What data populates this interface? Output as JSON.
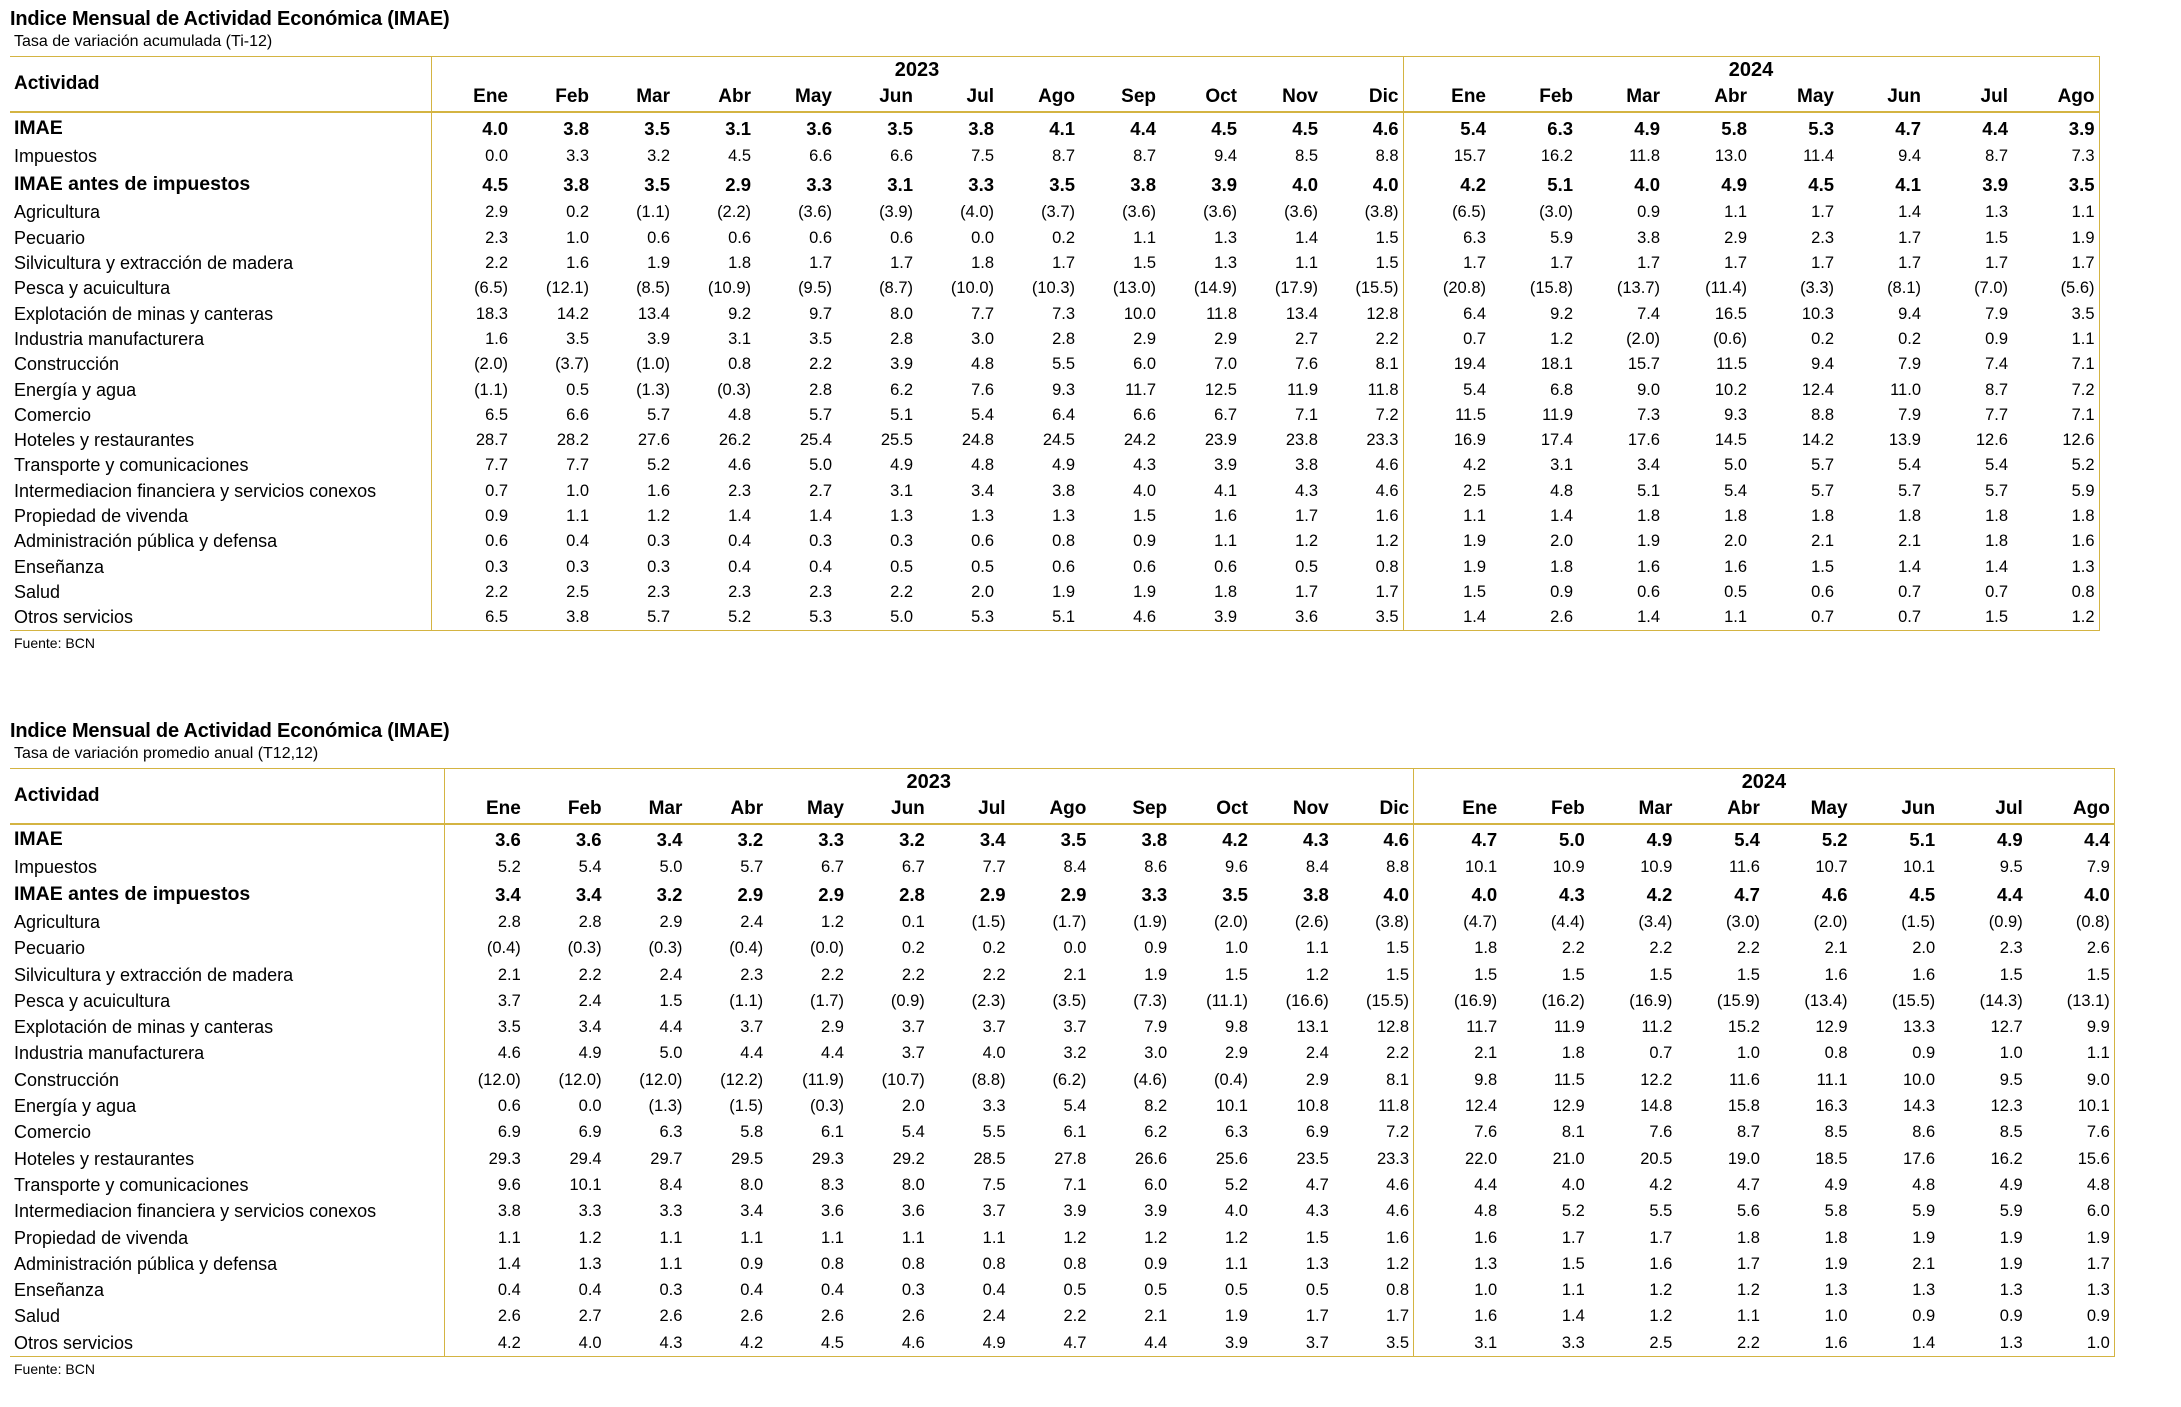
{
  "table1": {
    "title": "Indice Mensual de Actividad Económica (IMAE)",
    "subtitle": "Tasa de variación acumulada (Ti-12)",
    "label_header": "Actividad",
    "years": [
      "2023",
      "2024"
    ],
    "months_2023": [
      "Ene",
      "Feb",
      "Mar",
      "Abr",
      "May",
      "Jun",
      "Jul",
      "Ago",
      "Sep",
      "Oct",
      "Nov",
      "Dic"
    ],
    "months_2024": [
      "Ene",
      "Feb",
      "Mar",
      "Abr",
      "May",
      "Jun",
      "Jul",
      "Ago"
    ],
    "rows": [
      {
        "label": "IMAE",
        "bold": true,
        "values": [
          "4.0",
          "3.8",
          "3.5",
          "3.1",
          "3.6",
          "3.5",
          "3.8",
          "4.1",
          "4.4",
          "4.5",
          "4.5",
          "4.6",
          "5.4",
          "6.3",
          "4.9",
          "5.8",
          "5.3",
          "4.7",
          "4.4",
          "3.9"
        ]
      },
      {
        "label": "Impuestos",
        "bold": false,
        "values": [
          "0.0",
          "3.3",
          "3.2",
          "4.5",
          "6.6",
          "6.6",
          "7.5",
          "8.7",
          "8.7",
          "9.4",
          "8.5",
          "8.8",
          "15.7",
          "16.2",
          "11.8",
          "13.0",
          "11.4",
          "9.4",
          "8.7",
          "7.3"
        ]
      },
      {
        "label": "IMAE antes de impuestos",
        "bold": true,
        "values": [
          "4.5",
          "3.8",
          "3.5",
          "2.9",
          "3.3",
          "3.1",
          "3.3",
          "3.5",
          "3.8",
          "3.9",
          "4.0",
          "4.0",
          "4.2",
          "5.1",
          "4.0",
          "4.9",
          "4.5",
          "4.1",
          "3.9",
          "3.5"
        ]
      },
      {
        "label": "Agricultura",
        "bold": false,
        "values": [
          "2.9",
          "0.2",
          "(1.1)",
          "(2.2)",
          "(3.6)",
          "(3.9)",
          "(4.0)",
          "(3.7)",
          "(3.6)",
          "(3.6)",
          "(3.6)",
          "(3.8)",
          "(6.5)",
          "(3.0)",
          "0.9",
          "1.1",
          "1.7",
          "1.4",
          "1.3",
          "1.1"
        ]
      },
      {
        "label": "Pecuario",
        "bold": false,
        "values": [
          "2.3",
          "1.0",
          "0.6",
          "0.6",
          "0.6",
          "0.6",
          "0.0",
          "0.2",
          "1.1",
          "1.3",
          "1.4",
          "1.5",
          "6.3",
          "5.9",
          "3.8",
          "2.9",
          "2.3",
          "1.7",
          "1.5",
          "1.9"
        ]
      },
      {
        "label": "Silvicultura y extracción de madera",
        "bold": false,
        "values": [
          "2.2",
          "1.6",
          "1.9",
          "1.8",
          "1.7",
          "1.7",
          "1.8",
          "1.7",
          "1.5",
          "1.3",
          "1.1",
          "1.5",
          "1.7",
          "1.7",
          "1.7",
          "1.7",
          "1.7",
          "1.7",
          "1.7",
          "1.7"
        ]
      },
      {
        "label": "Pesca y acuicultura",
        "bold": false,
        "values": [
          "(6.5)",
          "(12.1)",
          "(8.5)",
          "(10.9)",
          "(9.5)",
          "(8.7)",
          "(10.0)",
          "(10.3)",
          "(13.0)",
          "(14.9)",
          "(17.9)",
          "(15.5)",
          "(20.8)",
          "(15.8)",
          "(13.7)",
          "(11.4)",
          "(3.3)",
          "(8.1)",
          "(7.0)",
          "(5.6)"
        ]
      },
      {
        "label": "Explotación de minas y canteras",
        "bold": false,
        "values": [
          "18.3",
          "14.2",
          "13.4",
          "9.2",
          "9.7",
          "8.0",
          "7.7",
          "7.3",
          "10.0",
          "11.8",
          "13.4",
          "12.8",
          "6.4",
          "9.2",
          "7.4",
          "16.5",
          "10.3",
          "9.4",
          "7.9",
          "3.5"
        ]
      },
      {
        "label": "Industria manufacturera",
        "bold": false,
        "values": [
          "1.6",
          "3.5",
          "3.9",
          "3.1",
          "3.5",
          "2.8",
          "3.0",
          "2.8",
          "2.9",
          "2.9",
          "2.7",
          "2.2",
          "0.7",
          "1.2",
          "(2.0)",
          "(0.6)",
          "0.2",
          "0.2",
          "0.9",
          "1.1"
        ]
      },
      {
        "label": "Construcción",
        "bold": false,
        "values": [
          "(2.0)",
          "(3.7)",
          "(1.0)",
          "0.8",
          "2.2",
          "3.9",
          "4.8",
          "5.5",
          "6.0",
          "7.0",
          "7.6",
          "8.1",
          "19.4",
          "18.1",
          "15.7",
          "11.5",
          "9.4",
          "7.9",
          "7.4",
          "7.1"
        ]
      },
      {
        "label": "Energía y agua",
        "bold": false,
        "values": [
          "(1.1)",
          "0.5",
          "(1.3)",
          "(0.3)",
          "2.8",
          "6.2",
          "7.6",
          "9.3",
          "11.7",
          "12.5",
          "11.9",
          "11.8",
          "5.4",
          "6.8",
          "9.0",
          "10.2",
          "12.4",
          "11.0",
          "8.7",
          "7.2"
        ]
      },
      {
        "label": "Comercio",
        "bold": false,
        "values": [
          "6.5",
          "6.6",
          "5.7",
          "4.8",
          "5.7",
          "5.1",
          "5.4",
          "6.4",
          "6.6",
          "6.7",
          "7.1",
          "7.2",
          "11.5",
          "11.9",
          "7.3",
          "9.3",
          "8.8",
          "7.9",
          "7.7",
          "7.1"
        ]
      },
      {
        "label": "Hoteles y restaurantes",
        "bold": false,
        "values": [
          "28.7",
          "28.2",
          "27.6",
          "26.2",
          "25.4",
          "25.5",
          "24.8",
          "24.5",
          "24.2",
          "23.9",
          "23.8",
          "23.3",
          "16.9",
          "17.4",
          "17.6",
          "14.5",
          "14.2",
          "13.9",
          "12.6",
          "12.6"
        ]
      },
      {
        "label": "Transporte y comunicaciones",
        "bold": false,
        "values": [
          "7.7",
          "7.7",
          "5.2",
          "4.6",
          "5.0",
          "4.9",
          "4.8",
          "4.9",
          "4.3",
          "3.9",
          "3.8",
          "4.6",
          "4.2",
          "3.1",
          "3.4",
          "5.0",
          "5.7",
          "5.4",
          "5.4",
          "5.2"
        ]
      },
      {
        "label": "Intermediacion financiera y servicios conexos",
        "bold": false,
        "values": [
          "0.7",
          "1.0",
          "1.6",
          "2.3",
          "2.7",
          "3.1",
          "3.4",
          "3.8",
          "4.0",
          "4.1",
          "4.3",
          "4.6",
          "2.5",
          "4.8",
          "5.1",
          "5.4",
          "5.7",
          "5.7",
          "5.7",
          "5.9"
        ]
      },
      {
        "label": "Propiedad de vivenda",
        "bold": false,
        "values": [
          "0.9",
          "1.1",
          "1.2",
          "1.4",
          "1.4",
          "1.3",
          "1.3",
          "1.3",
          "1.5",
          "1.6",
          "1.7",
          "1.6",
          "1.1",
          "1.4",
          "1.8",
          "1.8",
          "1.8",
          "1.8",
          "1.8",
          "1.8"
        ]
      },
      {
        "label": "Administración pública y defensa",
        "bold": false,
        "values": [
          "0.6",
          "0.4",
          "0.3",
          "0.4",
          "0.3",
          "0.3",
          "0.6",
          "0.8",
          "0.9",
          "1.1",
          "1.2",
          "1.2",
          "1.9",
          "2.0",
          "1.9",
          "2.0",
          "2.1",
          "2.1",
          "1.8",
          "1.6"
        ]
      },
      {
        "label": "Enseñanza",
        "bold": false,
        "values": [
          "0.3",
          "0.3",
          "0.3",
          "0.4",
          "0.4",
          "0.5",
          "0.5",
          "0.6",
          "0.6",
          "0.6",
          "0.5",
          "0.8",
          "1.9",
          "1.8",
          "1.6",
          "1.6",
          "1.5",
          "1.4",
          "1.4",
          "1.3"
        ]
      },
      {
        "label": "Salud",
        "bold": false,
        "values": [
          "2.2",
          "2.5",
          "2.3",
          "2.3",
          "2.3",
          "2.2",
          "2.0",
          "1.9",
          "1.9",
          "1.8",
          "1.7",
          "1.7",
          "1.5",
          "0.9",
          "0.6",
          "0.5",
          "0.6",
          "0.7",
          "0.7",
          "0.8"
        ]
      },
      {
        "label": "Otros servicios",
        "bold": false,
        "values": [
          "6.5",
          "3.8",
          "5.7",
          "5.2",
          "5.3",
          "5.0",
          "5.3",
          "5.1",
          "4.6",
          "3.9",
          "3.6",
          "3.5",
          "1.4",
          "2.6",
          "1.4",
          "1.1",
          "0.7",
          "0.7",
          "1.5",
          "1.2"
        ]
      }
    ],
    "source": "Fuente: BCN"
  },
  "table2": {
    "title": "Indice Mensual de Actividad Económica (IMAE)",
    "subtitle": "Tasa de variación promedio anual (T12,12)",
    "label_header": "Actividad",
    "years": [
      "2023",
      "2024"
    ],
    "months_2023": [
      "Ene",
      "Feb",
      "Mar",
      "Abr",
      "May",
      "Jun",
      "Jul",
      "Ago",
      "Sep",
      "Oct",
      "Nov",
      "Dic"
    ],
    "months_2024": [
      "Ene",
      "Feb",
      "Mar",
      "Abr",
      "May",
      "Jun",
      "Jul",
      "Ago"
    ],
    "rows": [
      {
        "label": "IMAE",
        "bold": true,
        "values": [
          "3.6",
          "3.6",
          "3.4",
          "3.2",
          "3.3",
          "3.2",
          "3.4",
          "3.5",
          "3.8",
          "4.2",
          "4.3",
          "4.6",
          "4.7",
          "5.0",
          "4.9",
          "5.4",
          "5.2",
          "5.1",
          "4.9",
          "4.4"
        ]
      },
      {
        "label": "Impuestos",
        "bold": false,
        "values": [
          "5.2",
          "5.4",
          "5.0",
          "5.7",
          "6.7",
          "6.7",
          "7.7",
          "8.4",
          "8.6",
          "9.6",
          "8.4",
          "8.8",
          "10.1",
          "10.9",
          "10.9",
          "11.6",
          "10.7",
          "10.1",
          "9.5",
          "7.9"
        ]
      },
      {
        "label": "IMAE antes de impuestos",
        "bold": true,
        "values": [
          "3.4",
          "3.4",
          "3.2",
          "2.9",
          "2.9",
          "2.8",
          "2.9",
          "2.9",
          "3.3",
          "3.5",
          "3.8",
          "4.0",
          "4.0",
          "4.3",
          "4.2",
          "4.7",
          "4.6",
          "4.5",
          "4.4",
          "4.0"
        ]
      },
      {
        "label": "Agricultura",
        "bold": false,
        "values": [
          "2.8",
          "2.8",
          "2.9",
          "2.4",
          "1.2",
          "0.1",
          "(1.5)",
          "(1.7)",
          "(1.9)",
          "(2.0)",
          "(2.6)",
          "(3.8)",
          "(4.7)",
          "(4.4)",
          "(3.4)",
          "(3.0)",
          "(2.0)",
          "(1.5)",
          "(0.9)",
          "(0.8)"
        ]
      },
      {
        "label": "Pecuario",
        "bold": false,
        "values": [
          "(0.4)",
          "(0.3)",
          "(0.3)",
          "(0.4)",
          "(0.0)",
          "0.2",
          "0.2",
          "0.0",
          "0.9",
          "1.0",
          "1.1",
          "1.5",
          "1.8",
          "2.2",
          "2.2",
          "2.2",
          "2.1",
          "2.0",
          "2.3",
          "2.6"
        ]
      },
      {
        "label": "Silvicultura y extracción de madera",
        "bold": false,
        "values": [
          "2.1",
          "2.2",
          "2.4",
          "2.3",
          "2.2",
          "2.2",
          "2.2",
          "2.1",
          "1.9",
          "1.5",
          "1.2",
          "1.5",
          "1.5",
          "1.5",
          "1.5",
          "1.5",
          "1.6",
          "1.6",
          "1.5",
          "1.5"
        ]
      },
      {
        "label": "Pesca y acuicultura",
        "bold": false,
        "values": [
          "3.7",
          "2.4",
          "1.5",
          "(1.1)",
          "(1.7)",
          "(0.9)",
          "(2.3)",
          "(3.5)",
          "(7.3)",
          "(11.1)",
          "(16.6)",
          "(15.5)",
          "(16.9)",
          "(16.2)",
          "(16.9)",
          "(15.9)",
          "(13.4)",
          "(15.5)",
          "(14.3)",
          "(13.1)"
        ]
      },
      {
        "label": "Explotación de minas y canteras",
        "bold": false,
        "values": [
          "3.5",
          "3.4",
          "4.4",
          "3.7",
          "2.9",
          "3.7",
          "3.7",
          "3.7",
          "7.9",
          "9.8",
          "13.1",
          "12.8",
          "11.7",
          "11.9",
          "11.2",
          "15.2",
          "12.9",
          "13.3",
          "12.7",
          "9.9"
        ]
      },
      {
        "label": "Industria manufacturera",
        "bold": false,
        "values": [
          "4.6",
          "4.9",
          "5.0",
          "4.4",
          "4.4",
          "3.7",
          "4.0",
          "3.2",
          "3.0",
          "2.9",
          "2.4",
          "2.2",
          "2.1",
          "1.8",
          "0.7",
          "1.0",
          "0.8",
          "0.9",
          "1.0",
          "1.1"
        ]
      },
      {
        "label": "Construcción",
        "bold": false,
        "values": [
          "(12.0)",
          "(12.0)",
          "(12.0)",
          "(12.2)",
          "(11.9)",
          "(10.7)",
          "(8.8)",
          "(6.2)",
          "(4.6)",
          "(0.4)",
          "2.9",
          "8.1",
          "9.8",
          "11.5",
          "12.2",
          "11.6",
          "11.1",
          "10.0",
          "9.5",
          "9.0"
        ]
      },
      {
        "label": "Energía y agua",
        "bold": false,
        "values": [
          "0.6",
          "0.0",
          "(1.3)",
          "(1.5)",
          "(0.3)",
          "2.0",
          "3.3",
          "5.4",
          "8.2",
          "10.1",
          "10.8",
          "11.8",
          "12.4",
          "12.9",
          "14.8",
          "15.8",
          "16.3",
          "14.3",
          "12.3",
          "10.1"
        ]
      },
      {
        "label": "Comercio",
        "bold": false,
        "values": [
          "6.9",
          "6.9",
          "6.3",
          "5.8",
          "6.1",
          "5.4",
          "5.5",
          "6.1",
          "6.2",
          "6.3",
          "6.9",
          "7.2",
          "7.6",
          "8.1",
          "7.6",
          "8.7",
          "8.5",
          "8.6",
          "8.5",
          "7.6"
        ]
      },
      {
        "label": "Hoteles y restaurantes",
        "bold": false,
        "values": [
          "29.3",
          "29.4",
          "29.7",
          "29.5",
          "29.3",
          "29.2",
          "28.5",
          "27.8",
          "26.6",
          "25.6",
          "23.5",
          "23.3",
          "22.0",
          "21.0",
          "20.5",
          "19.0",
          "18.5",
          "17.6",
          "16.2",
          "15.6"
        ]
      },
      {
        "label": "Transporte y comunicaciones",
        "bold": false,
        "values": [
          "9.6",
          "10.1",
          "8.4",
          "8.0",
          "8.3",
          "8.0",
          "7.5",
          "7.1",
          "6.0",
          "5.2",
          "4.7",
          "4.6",
          "4.4",
          "4.0",
          "4.2",
          "4.7",
          "4.9",
          "4.8",
          "4.9",
          "4.8"
        ]
      },
      {
        "label": "Intermediacion financiera y servicios conexos",
        "bold": false,
        "values": [
          "3.8",
          "3.3",
          "3.3",
          "3.4",
          "3.6",
          "3.6",
          "3.7",
          "3.9",
          "3.9",
          "4.0",
          "4.3",
          "4.6",
          "4.8",
          "5.2",
          "5.5",
          "5.6",
          "5.8",
          "5.9",
          "5.9",
          "6.0"
        ]
      },
      {
        "label": "Propiedad de vivenda",
        "bold": false,
        "values": [
          "1.1",
          "1.2",
          "1.1",
          "1.1",
          "1.1",
          "1.1",
          "1.1",
          "1.2",
          "1.2",
          "1.2",
          "1.5",
          "1.6",
          "1.6",
          "1.7",
          "1.7",
          "1.8",
          "1.8",
          "1.9",
          "1.9",
          "1.9"
        ]
      },
      {
        "label": "Administración pública y defensa",
        "bold": false,
        "values": [
          "1.4",
          "1.3",
          "1.1",
          "0.9",
          "0.8",
          "0.8",
          "0.8",
          "0.8",
          "0.9",
          "1.1",
          "1.3",
          "1.2",
          "1.3",
          "1.5",
          "1.6",
          "1.7",
          "1.9",
          "2.1",
          "1.9",
          "1.7"
        ]
      },
      {
        "label": "Enseñanza",
        "bold": false,
        "values": [
          "0.4",
          "0.4",
          "0.3",
          "0.4",
          "0.4",
          "0.3",
          "0.4",
          "0.5",
          "0.5",
          "0.5",
          "0.5",
          "0.8",
          "1.0",
          "1.1",
          "1.2",
          "1.2",
          "1.3",
          "1.3",
          "1.3",
          "1.3"
        ]
      },
      {
        "label": "Salud",
        "bold": false,
        "values": [
          "2.6",
          "2.7",
          "2.6",
          "2.6",
          "2.6",
          "2.6",
          "2.4",
          "2.2",
          "2.1",
          "1.9",
          "1.7",
          "1.7",
          "1.6",
          "1.4",
          "1.2",
          "1.1",
          "1.0",
          "0.9",
          "0.9",
          "0.9"
        ]
      },
      {
        "label": "Otros servicios",
        "bold": false,
        "values": [
          "4.2",
          "4.0",
          "4.3",
          "4.2",
          "4.5",
          "4.6",
          "4.9",
          "4.7",
          "4.4",
          "3.9",
          "3.7",
          "3.5",
          "3.1",
          "3.3",
          "2.5",
          "2.2",
          "1.6",
          "1.4",
          "1.3",
          "1.0"
        ]
      }
    ],
    "source": "Fuente: BCN"
  }
}
